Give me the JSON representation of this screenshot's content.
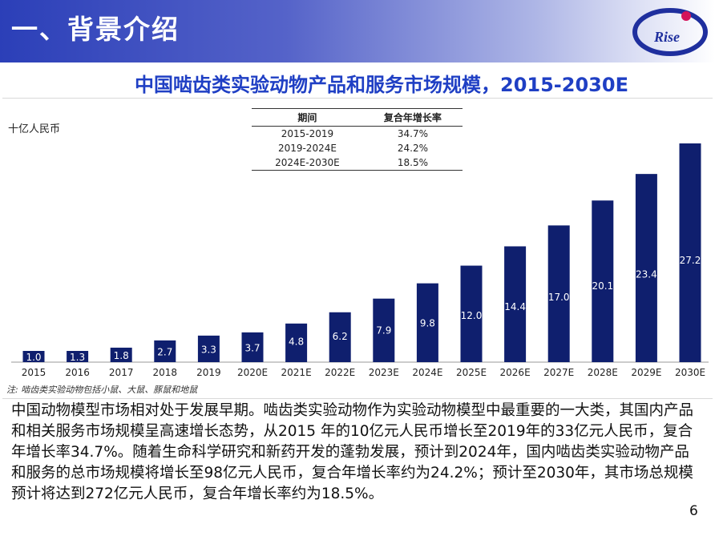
{
  "header": {
    "title": "一、背景介绍"
  },
  "logo": {
    "text": "Rise",
    "accent_color": "#d4145a",
    "ring_color": "#1f2f9e"
  },
  "subtitle": "中国啮齿类实验动物产品和服务市场规模，2015-2030E",
  "chart_data": {
    "type": "bar",
    "title": "中国啮齿类实验动物产品和服务市场规模，2015-2030E",
    "ylabel": "十亿人民币",
    "xlabel": "",
    "categories": [
      "2015",
      "2016",
      "2017",
      "2018",
      "2019",
      "2020E",
      "2021E",
      "2022E",
      "2023E",
      "2024E",
      "2025E",
      "2026E",
      "2027E",
      "2028E",
      "2029E",
      "2030E"
    ],
    "values": [
      1.0,
      1.3,
      1.8,
      2.7,
      3.3,
      3.7,
      4.8,
      6.2,
      7.9,
      9.8,
      12.0,
      14.4,
      17.0,
      20.1,
      23.4,
      27.2
    ],
    "value_labels": [
      "1.0",
      "1.3",
      "1.8",
      "2.7",
      "3.3",
      "3.7",
      "4.8",
      "6.2",
      "7.9",
      "9.8",
      "12.0",
      "14.4",
      "17.0",
      "20.1",
      "23.4",
      "27.2"
    ],
    "ylim": [
      0,
      27.2
    ],
    "bar_color": "#0f1f6e",
    "grid": false,
    "note": "注:  啮齿类实验动物包括小鼠、大鼠、豚鼠和地鼠"
  },
  "cagr_table": {
    "headers": [
      "期间",
      "复合年增长率"
    ],
    "rows": [
      [
        "2015-2019",
        "34.7%"
      ],
      [
        "2019-2024E",
        "24.2%"
      ],
      [
        "2024E-2030E",
        "18.5%"
      ]
    ]
  },
  "body_text": "中国动物模型市场相对处于发展早期。啮齿类实验动物作为实验动物模型中最重要的一大类，其国内产品和相关服务市场规模呈高速增长态势，从2015 年的10亿元人民币增长至2019年的33亿元人民币，复合年增长率34.7%。随着生命科学研究和新药开发的蓬勃发展，预计到2024年，国内啮齿类实验动物产品和服务的总市场规模将增长至98亿元人民币，复合年增长率约为24.2%；预计至2030年，其市场总规模预计将达到272亿元人民币，复合年增长率约为18.5%。",
  "page_number": "6"
}
